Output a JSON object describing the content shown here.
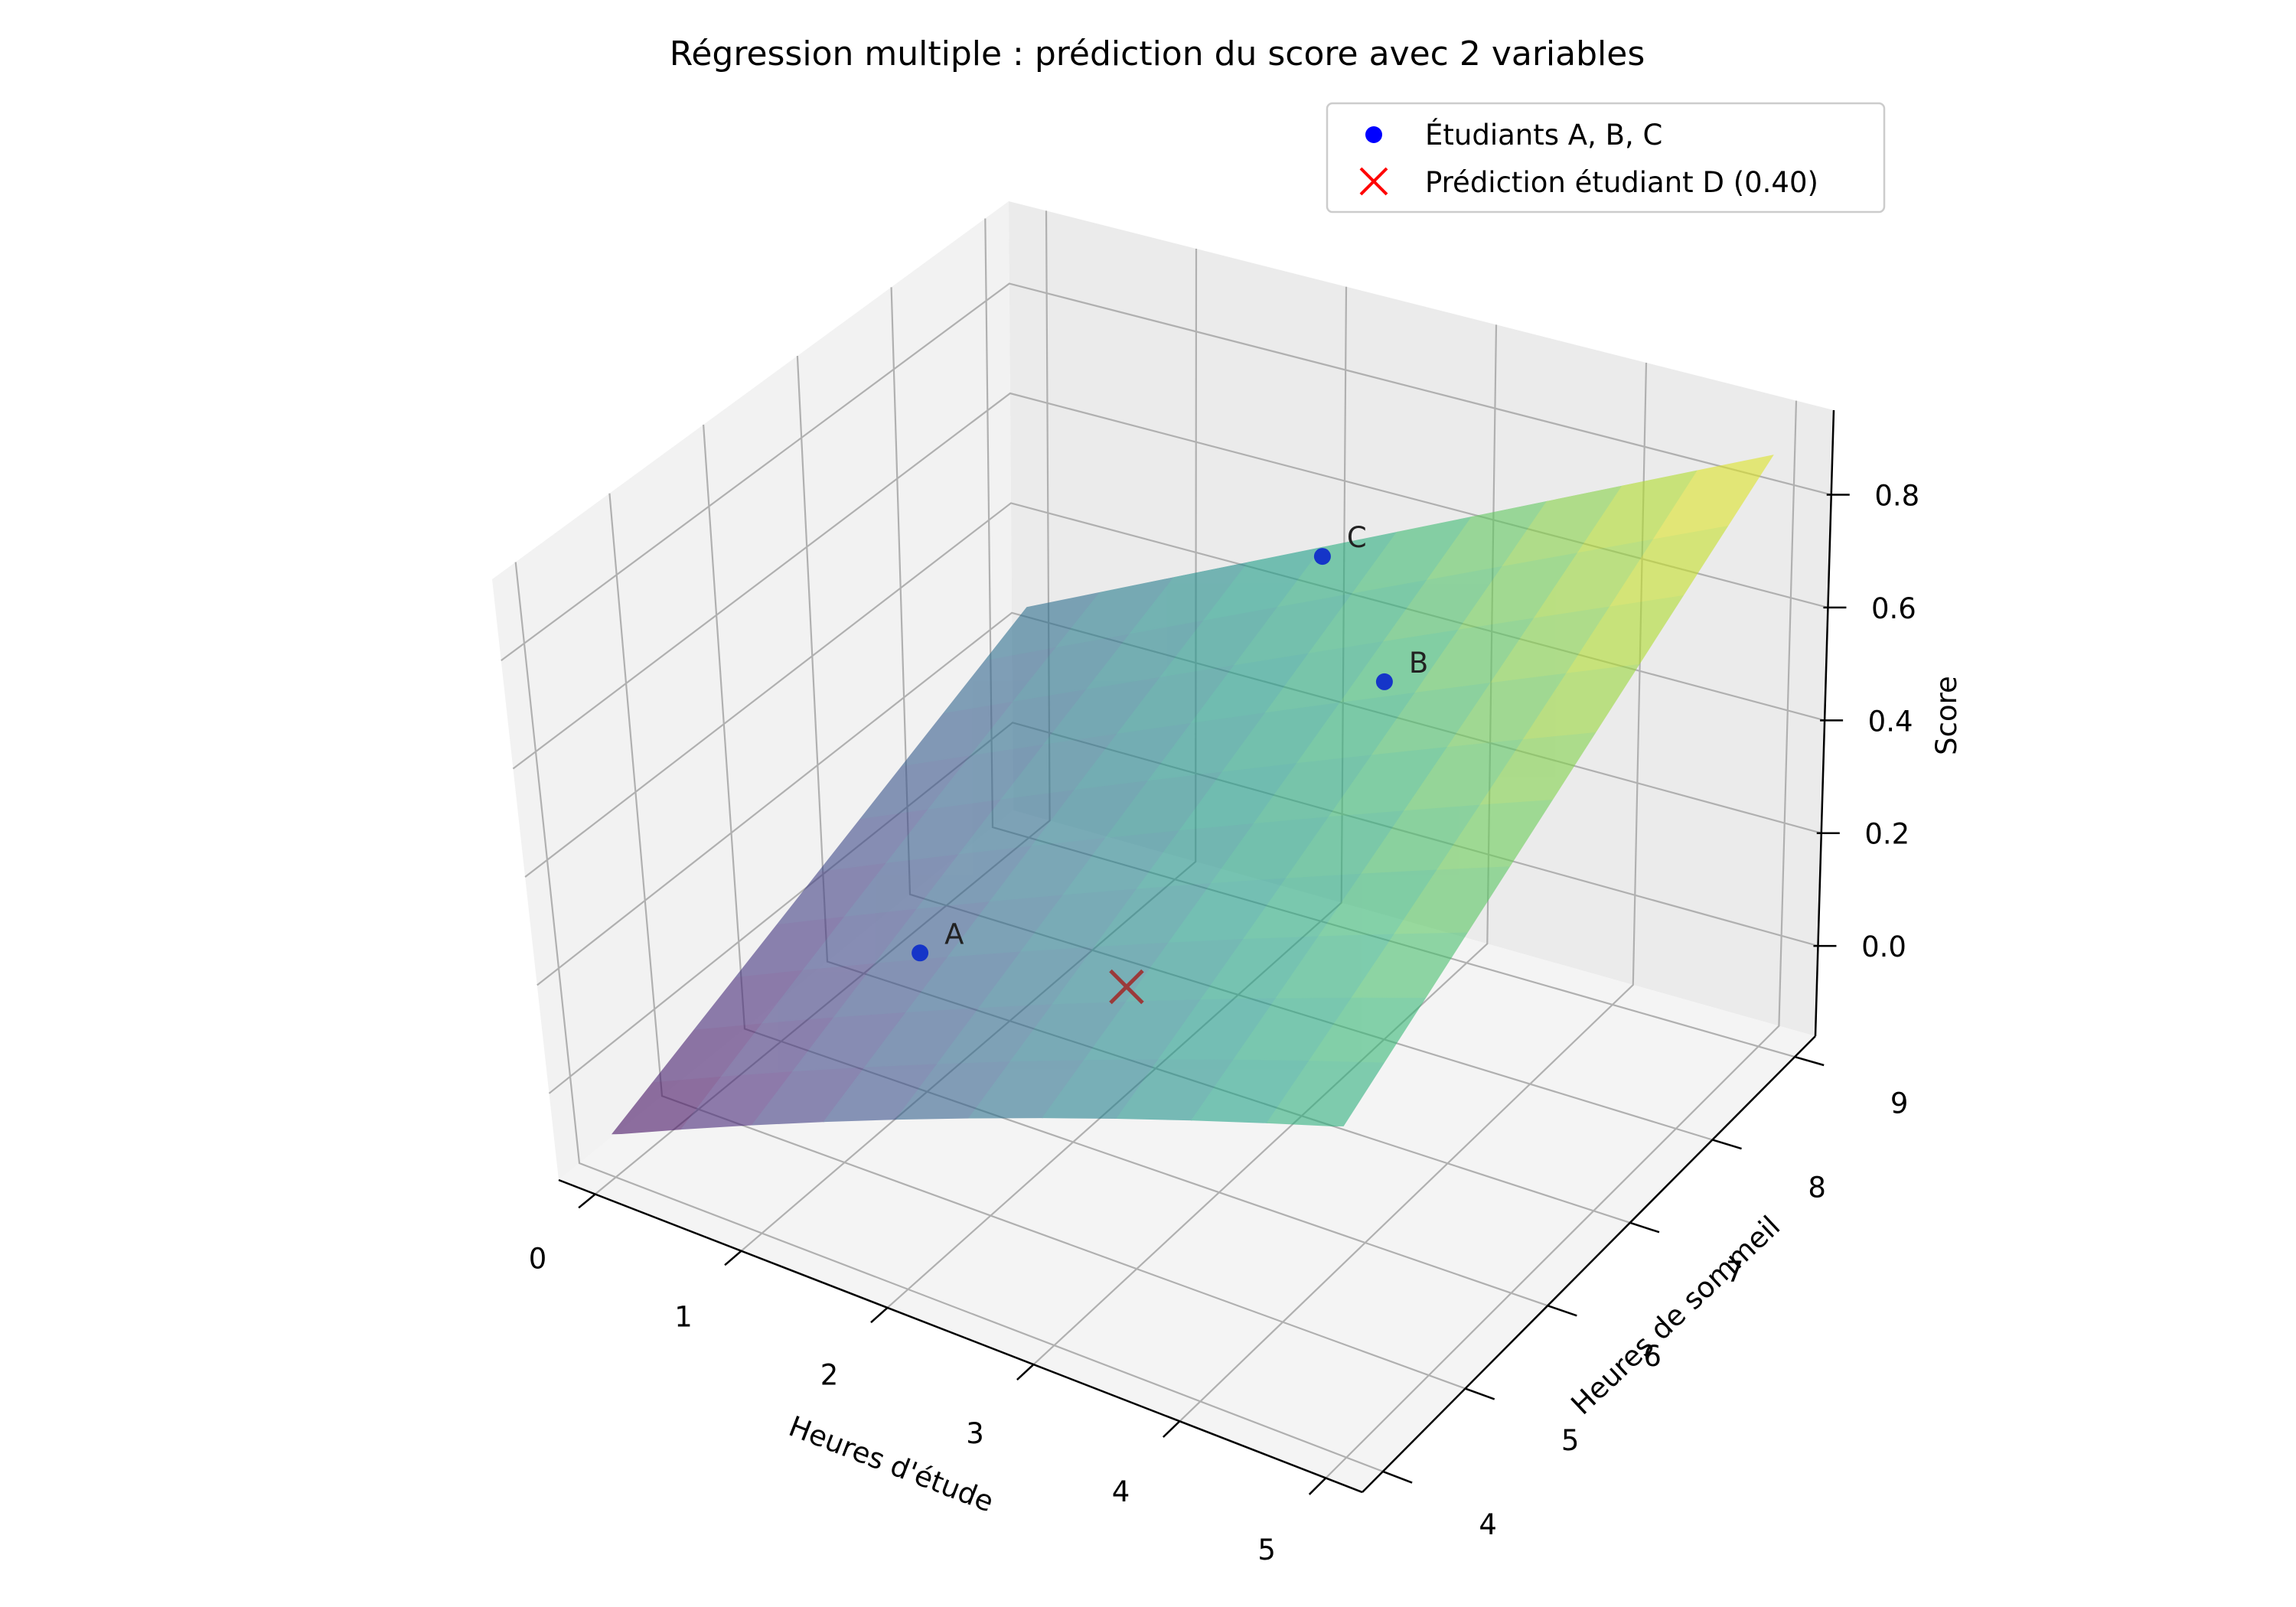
{
  "chart_data": {
    "type": "surface3d",
    "title": "Régression multiple : prédiction du score avec 2 variables",
    "xlabel": "Heures d'étude",
    "ylabel": "Heures de sommeil",
    "zlabel": "Score",
    "xlim": [
      -0.25,
      5.25
    ],
    "ylim": [
      3.75,
      9.25
    ],
    "zlim": [
      -0.16,
      0.95
    ],
    "x_ticks": [
      "0",
      "1",
      "2",
      "3",
      "4",
      "5"
    ],
    "y_ticks": [
      "4",
      "5",
      "6",
      "7",
      "8",
      "9"
    ],
    "z_ticks": [
      "0.0",
      "0.2",
      "0.4",
      "0.6",
      "0.8"
    ],
    "surface": {
      "colormap": "viridis",
      "x_range": [
        0,
        5
      ],
      "y_range": [
        4,
        9
      ],
      "z_corners": {
        "x0_y4": -0.08,
        "x5_y4": 0.56,
        "x0_y9": 0.26,
        "x5_y9": 0.9
      }
    },
    "points": [
      {
        "label": "A",
        "x": 1,
        "y": 6,
        "z": 0.1
      },
      {
        "label": "B",
        "x": 3,
        "y": 8,
        "z": 0.5
      },
      {
        "label": "C",
        "x": 2,
        "y": 9,
        "z": 0.5
      }
    ],
    "prediction": {
      "x": 3,
      "y": 5,
      "z": 0.4
    },
    "grid": true,
    "legend": {
      "placement": "upper-right",
      "entries": [
        {
          "label": "Étudiants A, B, C",
          "marker": "circle",
          "color": "#0000ff"
        },
        {
          "label": "Prédiction étudiant D (0.40)",
          "marker": "x",
          "color": "#ff0000"
        }
      ]
    }
  }
}
